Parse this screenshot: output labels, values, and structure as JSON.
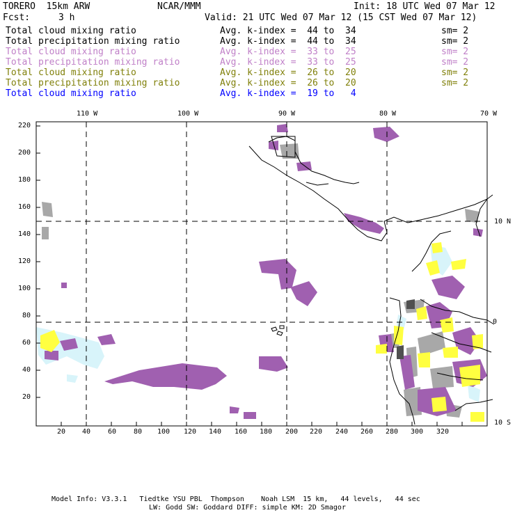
{
  "header": {
    "model": "TORERO  15km ARW",
    "org": "NCAR/MMM",
    "init": "Init: 18 UTC Wed 07 Mar 12",
    "fcst_label": "Fcst:",
    "fcst_value": "3 h",
    "valid": "Valid: 21 UTC Wed 07 Mar 12 (15 CST Wed 07 Mar 12)"
  },
  "legend": [
    {
      "field": "Total cloud mixing ratio",
      "kindex": "Avg. k-index =  44 to  34",
      "sm": "sm= 2",
      "color": "#000000"
    },
    {
      "field": "Total precipitation mixing ratio",
      "kindex": "Avg. k-index =  44 to  34",
      "sm": "sm= 2",
      "color": "#000000"
    },
    {
      "field": "Total cloud mixing ratio",
      "kindex": "Avg. k-index =  33 to  25",
      "sm": "sm= 2",
      "color": "#c080c8"
    },
    {
      "field": "Total precipitation mixing ratio",
      "kindex": "Avg. k-index =  33 to  25",
      "sm": "sm= 2",
      "color": "#c080c8"
    },
    {
      "field": "Total cloud mixing ratio",
      "kindex": "Avg. k-index =  26 to  20",
      "sm": "sm= 2",
      "color": "#80800a"
    },
    {
      "field": "Total precipitation mixing ratio",
      "kindex": "Avg. k-index =  26 to  20",
      "sm": "sm= 2",
      "color": "#80800a"
    },
    {
      "field": "Total cloud mixing ratio",
      "kindex": "Avg. k-index =  19 to   4",
      "sm": "",
      "color": "#0000ff"
    }
  ],
  "top_axis": [
    "110 W",
    "100 W",
    "90 W",
    "80 W",
    "70 W"
  ],
  "right_axis": [
    "10 N",
    "0",
    "10 S"
  ],
  "x_ticks": [
    "20",
    "40",
    "60",
    "80",
    "100",
    "120",
    "140",
    "160",
    "180",
    "200",
    "220",
    "240",
    "260",
    "280",
    "300",
    "320"
  ],
  "y_ticks": [
    "220",
    "200",
    "180",
    "160",
    "140",
    "120",
    "100",
    "80",
    "60",
    "40",
    "20"
  ],
  "footer": {
    "line1": "Model Info: V3.3.1   Tiedtke YSU PBL  Thompson    Noah LSM  15 km,   44 levels,   44 sec",
    "line2": "LW: Godd SW: Goddard DIFF: simple KM: 2D Smagor"
  },
  "colors": {
    "purple": "#a060b0",
    "gray": "#a8a8a8",
    "dark": "#505050",
    "yellow": "#ffff40",
    "cyan": "#d8f4fa"
  }
}
